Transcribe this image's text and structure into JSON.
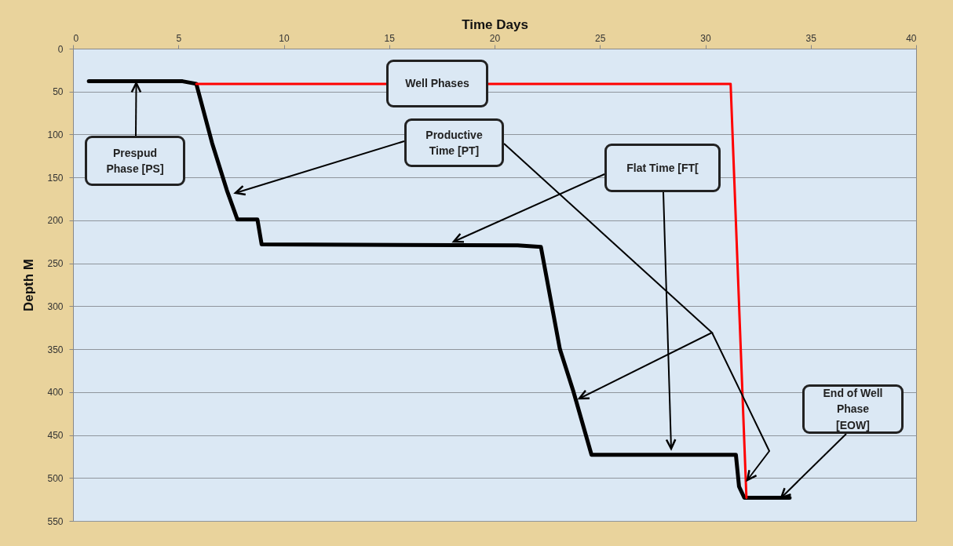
{
  "chart_data": {
    "type": "line",
    "xlabel": "Time Days",
    "ylabel": "Depth M",
    "xlim": [
      0,
      40
    ],
    "xticks": [
      0,
      5,
      10,
      15,
      20,
      25,
      30,
      35,
      40
    ],
    "ylim": [
      550,
      0
    ],
    "yticks": [
      0,
      50,
      100,
      150,
      200,
      250,
      300,
      350,
      400,
      450,
      500,
      550
    ],
    "grid": "y",
    "series": [
      {
        "color": "#000000",
        "x": [
          0.75,
          5.2,
          5.85,
          6.6,
          7.3,
          7.8,
          8.75,
          8.95,
          21.1,
          22.2,
          23.1,
          23.75,
          24.6,
          31.45,
          31.6,
          31.85,
          34.0
        ],
        "values": [
          38,
          38,
          41,
          110,
          165,
          199,
          199,
          228,
          229,
          231,
          350,
          400,
          473,
          473,
          510,
          523,
          523
        ]
      },
      {
        "color": "#ff0000",
        "x": [
          5.85,
          31.2,
          31.95
        ],
        "values": [
          41,
          41,
          523
        ]
      }
    ],
    "annotations": [
      "Well Phases",
      {
        "text": "Prespud Phase  [PS]",
        "x": 3,
        "y": 40
      },
      "Productive Time [PT]",
      "Flat Time [FT[",
      {
        "text": "End of Well Phase [EOW]",
        "x": 33.6,
        "y": 523
      }
    ]
  }
}
